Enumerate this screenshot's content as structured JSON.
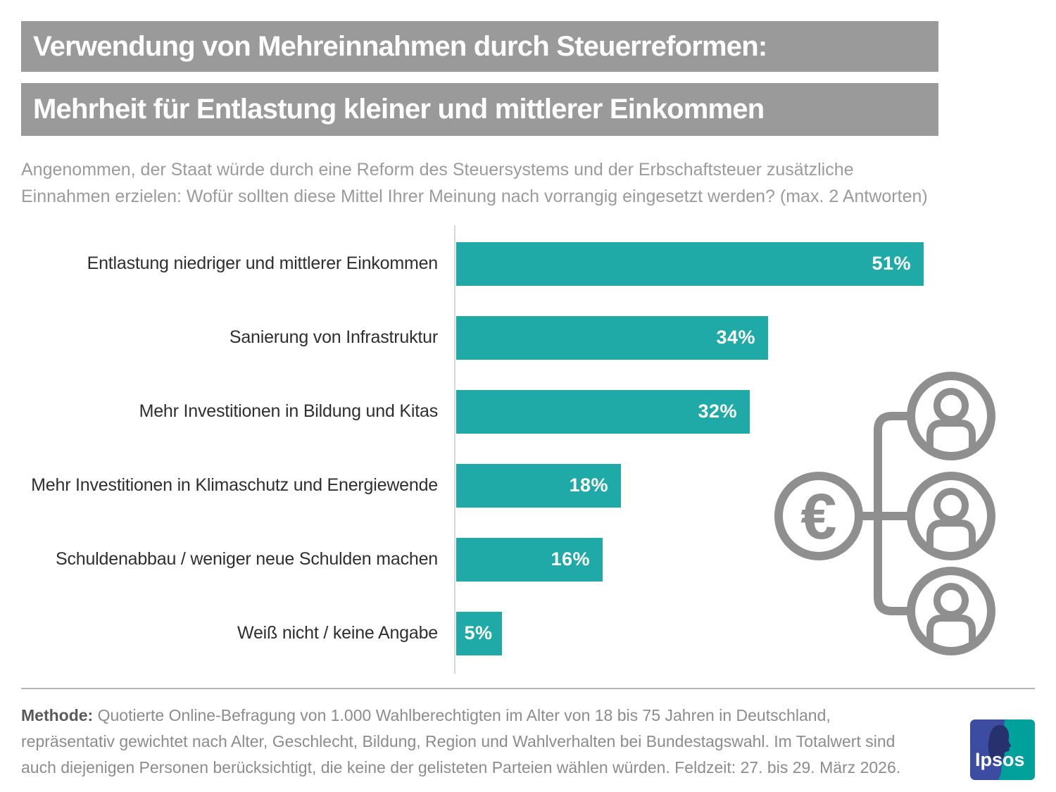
{
  "header": {
    "title_line1": "Verwendung von Mehreinnahmen durch Steuerreformen:",
    "title_line2": "Mehrheit für Entlastung kleiner und mittlerer Einkommen",
    "subtitle_lines": [
      "Angenommen, der Staat würde durch eine Reform des Steuersystems und der Erbschaftsteuer zusätzliche",
      "Einnahmen erzielen: Wofür sollten diese Mittel Ihrer Meinung nach vorrangig eingesetzt werden? (max. 2 Antworten)"
    ]
  },
  "chart_data": {
    "type": "bar",
    "orientation": "horizontal",
    "title": "Verwendung von Mehreinnahmen durch Steuerreformen: Mehrheit für Entlastung kleiner und mittlerer Einkommen",
    "question": "Angenommen, der Staat würde durch eine Reform des Steuersystems und der Erbschaftsteuer zusätzliche Einnahmen erzielen: Wofür sollten diese Mittel Ihrer Meinung nach vorrangig eingesetzt werden? (max. 2 Antworten)",
    "categories": [
      "Entlastung niedriger und mittlerer Einkommen",
      "Sanierung von Infrastruktur",
      "Mehr Investitionen in Bildung und Kitas",
      "Mehr Investitionen in Klimaschutz und Energiewende",
      "Schuldenabbau / weniger neue Schulden machen",
      "Weiß nicht / keine Angabe"
    ],
    "values": [
      51,
      34,
      32,
      18,
      16,
      5
    ],
    "value_suffix": "%",
    "xlim": [
      0,
      55
    ],
    "grid": false,
    "legend": "none",
    "bar_color": "#1FAAA8",
    "value_label_color": "#FFFFFF",
    "value_label_position": "inside-end"
  },
  "graphic": {
    "name": "euro-distributed-to-people-icon",
    "euro_symbol": "€",
    "color": "#8F8F8F"
  },
  "footer": {
    "method_label": "Methode:",
    "lines": [
      "Quotierte Online-Befragung von 1.000 Wahlberechtigten im Alter von 18 bis 75 Jahren in Deutschland,",
      "repräsentativ gewichtet nach Alter, Geschlecht, Bildung, Region und Wahlverhalten bei Bundestagswahl. Im Totalwert sind",
      "auch diejenigen Personen berücksichtigt, die keine der gelisteten Parteien wählen würden. Feldzeit: 27. bis 29. März 2026."
    ]
  },
  "logo": {
    "text": "Ipsos",
    "blue": "#3C4CA0",
    "teal": "#00A19B",
    "navy": "#27316E"
  },
  "colors": {
    "title_bg": "#9A9A9A",
    "title_text": "#FFFFFF",
    "subtitle_text": "#9B9B9B",
    "category_text": "#2F2F2F",
    "axis_line": "#D8D8D8",
    "separator": "#B5B5B5",
    "footer_text": "#8C8C8C",
    "footer_label": "#5A5A5A",
    "graphic_gray": "#8F8F8F"
  }
}
